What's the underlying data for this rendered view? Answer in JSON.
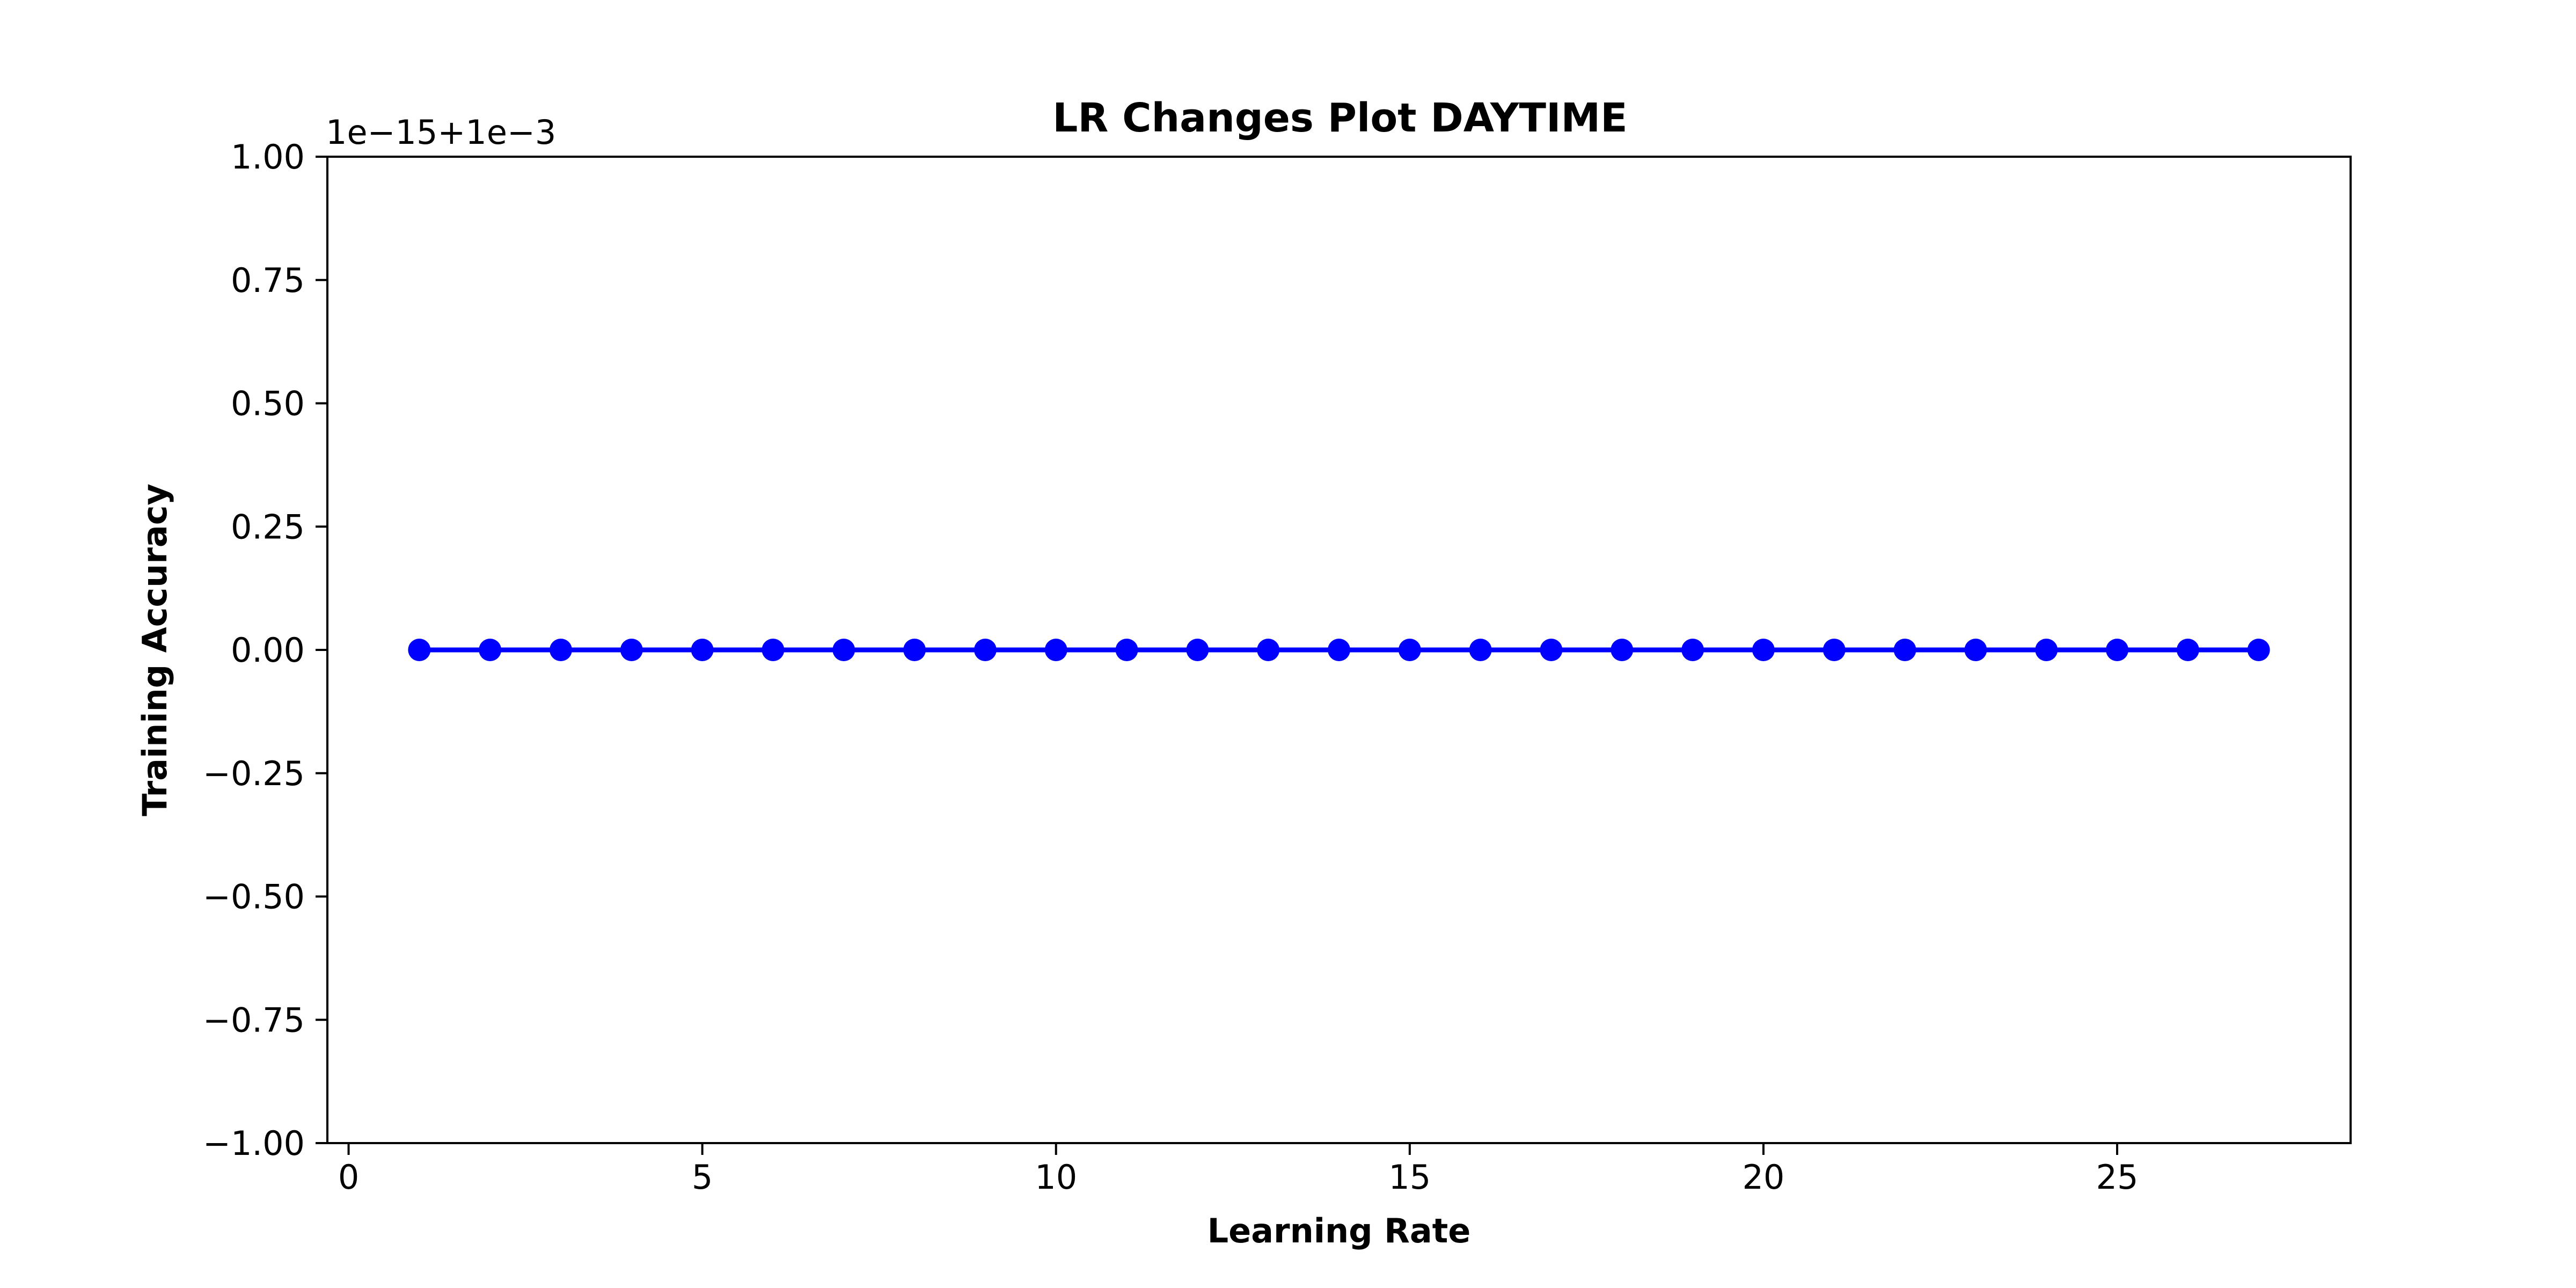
{
  "chart_data": {
    "type": "line",
    "title": "LR Changes Plot DAYTIME",
    "xlabel": "Learning Rate",
    "ylabel": "Training Accuracy",
    "y_offset_text": "1e−15+1e−3",
    "xlim": [
      -0.3,
      28.3
    ],
    "ylim": [
      -1.0,
      1.0
    ],
    "x_ticks": [
      0,
      5,
      10,
      15,
      20,
      25
    ],
    "x_tick_labels": [
      "0",
      "5",
      "10",
      "15",
      "20",
      "25"
    ],
    "y_ticks": [
      -1.0,
      -0.75,
      -0.5,
      -0.25,
      0.0,
      0.25,
      0.5,
      0.75,
      1.0
    ],
    "y_tick_labels": [
      "−1.00",
      "−0.75",
      "−0.50",
      "−0.25",
      "0.00",
      "0.25",
      "0.50",
      "0.75",
      "1.00"
    ],
    "grid": false,
    "series": [
      {
        "color": "#0000ff",
        "marker": "circle",
        "x": [
          1,
          2,
          3,
          4,
          5,
          6,
          7,
          8,
          9,
          10,
          11,
          12,
          13,
          14,
          15,
          16,
          17,
          18,
          19,
          20,
          21,
          22,
          23,
          24,
          25,
          26,
          27
        ],
        "y": [
          0,
          0,
          0,
          0,
          0,
          0,
          0,
          0,
          0,
          0,
          0,
          0,
          0,
          0,
          0,
          0,
          0,
          0,
          0,
          0,
          0,
          0,
          0,
          0,
          0,
          0,
          0
        ]
      }
    ]
  }
}
